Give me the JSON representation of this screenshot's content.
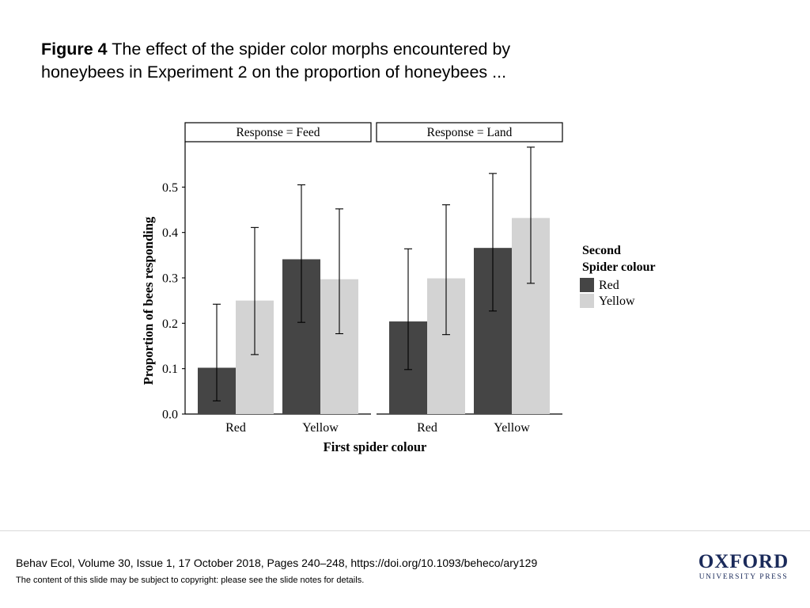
{
  "slide": {
    "title_bold": "Figure 4",
    "title_text": " The effect of the spider color morphs encountered by honeybees in Experiment 2 on the proportion of honeybees ...",
    "citation": "Behav Ecol, Volume 30, Issue 1, 17 October 2018, Pages 240–248, https://doi.org/10.1093/beheco/ary129",
    "copyright": "The content of this slide may be subject to copyright: please see the slide notes for details.",
    "logo_main": "OXFORD",
    "logo_sub": "UNIVERSITY PRESS"
  },
  "colors": {
    "red_series": "#454545",
    "yellow_series": "#d3d3d3",
    "error_bar": "#000000"
  },
  "chart_data": {
    "type": "bar",
    "xlabel": "First spider colour",
    "ylabel": "Proportion of bees responding",
    "ylim": [
      0,
      0.6
    ],
    "yticks": [
      0.0,
      0.1,
      0.2,
      0.3,
      0.4,
      0.5
    ],
    "ytick_labels": [
      "0.0",
      "0.1",
      "0.2",
      "0.3",
      "0.4",
      "0.5"
    ],
    "categories": [
      "Red",
      "Yellow"
    ],
    "legend": {
      "title_lines": [
        "Second",
        "Spider colour"
      ],
      "position": "right"
    },
    "series": [
      {
        "name": "Red",
        "color": "#454545"
      },
      {
        "name": "Yellow",
        "color": "#d3d3d3"
      }
    ],
    "panels": [
      {
        "label": "Response = Feed",
        "bars": [
          {
            "category": "Red",
            "series": "Red",
            "value": 0.102,
            "lower": 0.029,
            "upper": 0.242
          },
          {
            "category": "Red",
            "series": "Yellow",
            "value": 0.25,
            "lower": 0.131,
            "upper": 0.411
          },
          {
            "category": "Yellow",
            "series": "Red",
            "value": 0.341,
            "lower": 0.202,
            "upper": 0.505
          },
          {
            "category": "Yellow",
            "series": "Yellow",
            "value": 0.297,
            "lower": 0.177,
            "upper": 0.452
          }
        ]
      },
      {
        "label": "Response = Land",
        "bars": [
          {
            "category": "Red",
            "series": "Red",
            "value": 0.204,
            "lower": 0.098,
            "upper": 0.364
          },
          {
            "category": "Red",
            "series": "Yellow",
            "value": 0.299,
            "lower": 0.175,
            "upper": 0.461
          },
          {
            "category": "Yellow",
            "series": "Red",
            "value": 0.366,
            "lower": 0.227,
            "upper": 0.53
          },
          {
            "category": "Yellow",
            "series": "Yellow",
            "value": 0.432,
            "lower": 0.288,
            "upper": 0.588
          }
        ]
      }
    ]
  }
}
